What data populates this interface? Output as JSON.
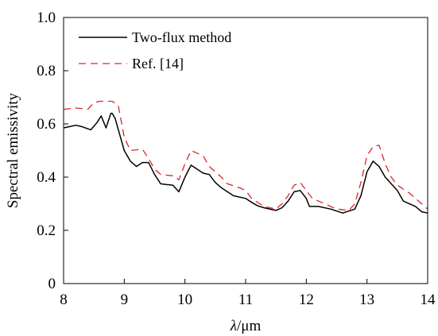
{
  "chart_data": {
    "type": "line",
    "title": "",
    "xlabel_symbol": "λ",
    "xlabel_unit": "/μm",
    "ylabel": "Spectral emissivity",
    "xlim": [
      8,
      14
    ],
    "ylim": [
      0,
      1.0
    ],
    "x_ticks": [
      "8",
      "9",
      "10",
      "11",
      "12",
      "13",
      "14"
    ],
    "y_ticks": [
      "0",
      "0.2",
      "0.4",
      "0.6",
      "0.8",
      "1.0"
    ],
    "grid": false,
    "legend_position": "top-left",
    "series": [
      {
        "name": "Two-flux method",
        "color": "#000000",
        "style": "solid",
        "points": [
          [
            8.0,
            0.585
          ],
          [
            8.1,
            0.59
          ],
          [
            8.2,
            0.595
          ],
          [
            8.3,
            0.59
          ],
          [
            8.45,
            0.578
          ],
          [
            8.55,
            0.605
          ],
          [
            8.62,
            0.63
          ],
          [
            8.7,
            0.585
          ],
          [
            8.78,
            0.64
          ],
          [
            8.8,
            0.64
          ],
          [
            8.85,
            0.62
          ],
          [
            8.9,
            0.58
          ],
          [
            9.0,
            0.5
          ],
          [
            9.1,
            0.46
          ],
          [
            9.2,
            0.44
          ],
          [
            9.3,
            0.455
          ],
          [
            9.4,
            0.455
          ],
          [
            9.5,
            0.41
          ],
          [
            9.6,
            0.375
          ],
          [
            9.7,
            0.372
          ],
          [
            9.8,
            0.37
          ],
          [
            9.9,
            0.345
          ],
          [
            10.0,
            0.4
          ],
          [
            10.1,
            0.445
          ],
          [
            10.2,
            0.43
          ],
          [
            10.3,
            0.415
          ],
          [
            10.4,
            0.41
          ],
          [
            10.5,
            0.38
          ],
          [
            10.6,
            0.36
          ],
          [
            10.7,
            0.345
          ],
          [
            10.8,
            0.33
          ],
          [
            11.0,
            0.32
          ],
          [
            11.1,
            0.305
          ],
          [
            11.2,
            0.292
          ],
          [
            11.3,
            0.285
          ],
          [
            11.5,
            0.275
          ],
          [
            11.6,
            0.285
          ],
          [
            11.7,
            0.31
          ],
          [
            11.8,
            0.345
          ],
          [
            11.9,
            0.35
          ],
          [
            12.0,
            0.32
          ],
          [
            12.05,
            0.29
          ],
          [
            12.2,
            0.29
          ],
          [
            12.4,
            0.28
          ],
          [
            12.6,
            0.265
          ],
          [
            12.8,
            0.28
          ],
          [
            12.9,
            0.33
          ],
          [
            13.0,
            0.42
          ],
          [
            13.1,
            0.46
          ],
          [
            13.2,
            0.44
          ],
          [
            13.3,
            0.4
          ],
          [
            13.5,
            0.35
          ],
          [
            13.6,
            0.31
          ],
          [
            13.8,
            0.29
          ],
          [
            13.9,
            0.27
          ],
          [
            14.0,
            0.265
          ]
        ]
      },
      {
        "name": "Ref. [14]",
        "color": "#d9262a",
        "style": "dashed",
        "points": [
          [
            8.0,
            0.655
          ],
          [
            8.2,
            0.66
          ],
          [
            8.4,
            0.655
          ],
          [
            8.5,
            0.68
          ],
          [
            8.6,
            0.685
          ],
          [
            8.8,
            0.685
          ],
          [
            8.9,
            0.67
          ],
          [
            9.0,
            0.55
          ],
          [
            9.1,
            0.5
          ],
          [
            9.3,
            0.505
          ],
          [
            9.4,
            0.47
          ],
          [
            9.5,
            0.43
          ],
          [
            9.6,
            0.41
          ],
          [
            9.8,
            0.405
          ],
          [
            9.9,
            0.39
          ],
          [
            10.0,
            0.45
          ],
          [
            10.1,
            0.5
          ],
          [
            10.3,
            0.48
          ],
          [
            10.4,
            0.44
          ],
          [
            10.6,
            0.4
          ],
          [
            10.7,
            0.375
          ],
          [
            10.9,
            0.36
          ],
          [
            11.0,
            0.35
          ],
          [
            11.1,
            0.32
          ],
          [
            11.3,
            0.29
          ],
          [
            11.5,
            0.28
          ],
          [
            11.6,
            0.3
          ],
          [
            11.7,
            0.33
          ],
          [
            11.8,
            0.37
          ],
          [
            11.9,
            0.38
          ],
          [
            12.0,
            0.35
          ],
          [
            12.1,
            0.32
          ],
          [
            12.3,
            0.3
          ],
          [
            12.5,
            0.28
          ],
          [
            12.7,
            0.275
          ],
          [
            12.8,
            0.3
          ],
          [
            12.9,
            0.38
          ],
          [
            13.0,
            0.48
          ],
          [
            13.1,
            0.515
          ],
          [
            13.2,
            0.52
          ],
          [
            13.3,
            0.45
          ],
          [
            13.4,
            0.4
          ],
          [
            13.5,
            0.37
          ],
          [
            13.7,
            0.34
          ],
          [
            13.9,
            0.3
          ],
          [
            14.0,
            0.28
          ]
        ]
      }
    ]
  }
}
